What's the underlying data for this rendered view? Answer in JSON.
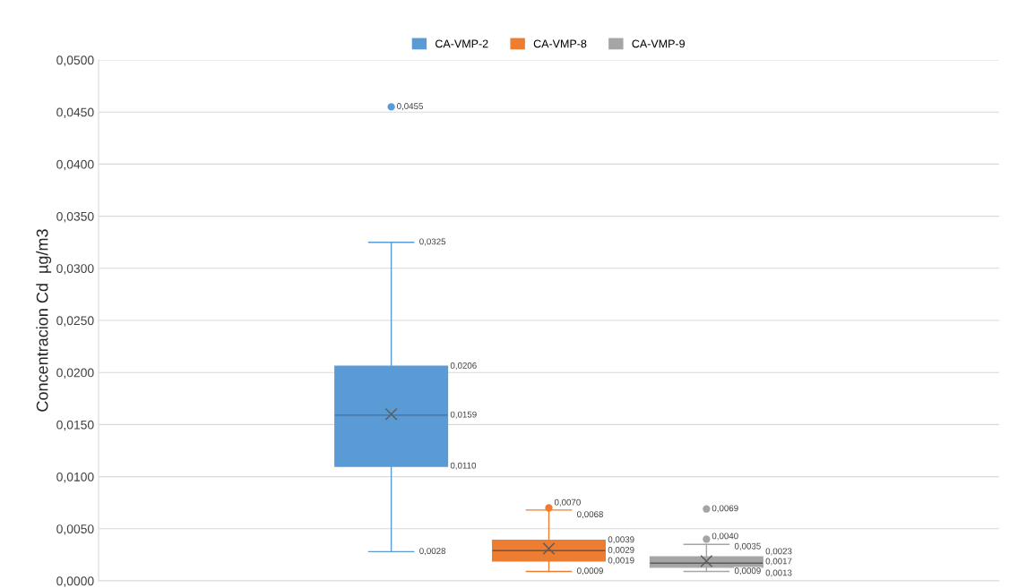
{
  "chart_data": {
    "type": "box",
    "ylabel": "Concentracion Cd  µg/m3",
    "categories": [
      null
    ],
    "series": [
      {
        "name": "CA-VMP-2",
        "color": "#5b9bd5",
        "boxes": [
          {
            "low": 0.0028,
            "q1": 0.011,
            "median": 0.0159,
            "q3": 0.0206,
            "high": 0.0325,
            "mean": 0.016,
            "outliers": [
              0.0455
            ]
          }
        ],
        "value_labels": [
          {
            "low": "0,0028",
            "q1": "0,0110",
            "median": "0,0159",
            "q3": "0,0206",
            "high": "0,0325",
            "outliers": [
              "0,0455"
            ]
          }
        ]
      },
      {
        "name": "CA-VMP-8",
        "color": "#ed7d31",
        "boxes": [
          {
            "low": 0.0009,
            "q1": 0.0019,
            "median": 0.0029,
            "q3": 0.0039,
            "high": 0.0068,
            "mean": 0.0031,
            "outliers": [
              0.007
            ]
          }
        ],
        "value_labels": [
          {
            "low": "0,0009",
            "q1": "0,0019",
            "median": "0,0029",
            "q3": "0,0039",
            "high": "0,0068",
            "outliers": [
              "0,0070"
            ]
          }
        ]
      },
      {
        "name": "CA-VMP-9",
        "color": "#a5a5a5",
        "boxes": [
          {
            "low": 0.0009,
            "q1": 0.0013,
            "median": 0.0017,
            "q3": 0.0023,
            "high": 0.0035,
            "mean": 0.0019,
            "outliers": [
              0.004,
              0.0069
            ]
          }
        ],
        "value_labels": [
          {
            "low": "0,0009",
            "q1": "0,0013",
            "median": "0,0017",
            "q3": "0,0023",
            "high": "0,0035",
            "outliers": [
              "0,0040",
              "0,0069"
            ]
          }
        ]
      }
    ],
    "ylim": [
      0,
      0.05
    ],
    "yticks": [
      {
        "value": 0,
        "label": "0,0000"
      },
      {
        "value": 0.005,
        "label": "0,0050"
      },
      {
        "value": 0.01,
        "label": "0,0100"
      },
      {
        "value": 0.015,
        "label": "0,0150"
      },
      {
        "value": 0.02,
        "label": "0,0200"
      },
      {
        "value": 0.025,
        "label": "0,0250"
      },
      {
        "value": 0.03,
        "label": "0,0300"
      },
      {
        "value": 0.035,
        "label": "0,0350"
      },
      {
        "value": 0.04,
        "label": "0,0400"
      },
      {
        "value": 0.045,
        "label": "0,0450"
      },
      {
        "value": 0.05,
        "label": "0,0500"
      }
    ],
    "grid": "y",
    "legend": "top"
  }
}
